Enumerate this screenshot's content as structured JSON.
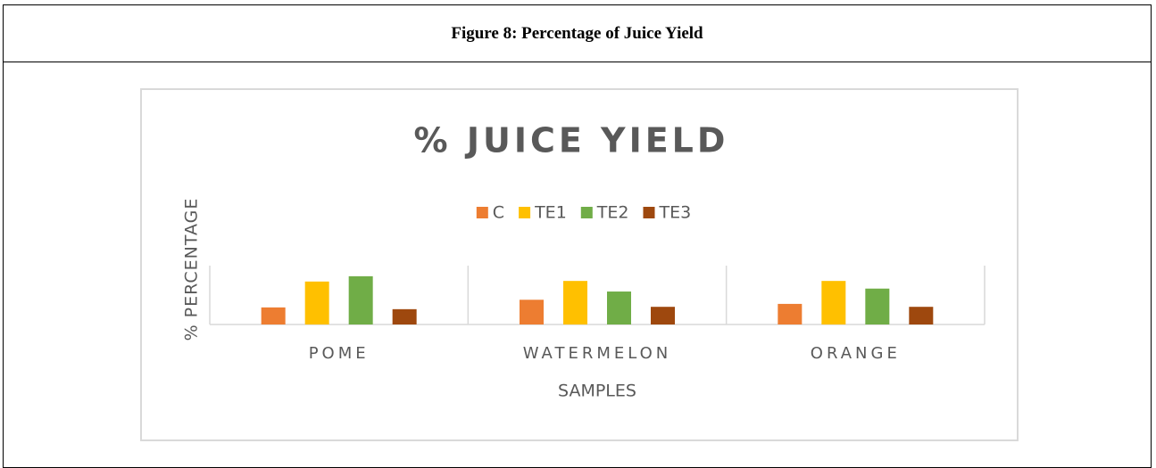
{
  "header": {
    "title": "Figure 8: Percentage of Juice Yield"
  },
  "chart_data": {
    "type": "bar",
    "title": "% JUICE YIELD",
    "x_label": "SAMPLES",
    "y_label": "% PERCENTAGE",
    "categories": [
      "POME",
      "WATERMELON",
      "ORANGE"
    ],
    "series": [
      {
        "name": "C",
        "color": "#ed7d31",
        "values": [
          29,
          42,
          35
        ]
      },
      {
        "name": "TE1",
        "color": "#ffc000",
        "values": [
          73,
          74,
          74
        ]
      },
      {
        "name": "TE2",
        "color": "#70ad47",
        "values": [
          82,
          56,
          61
        ]
      },
      {
        "name": "TE3",
        "color": "#9e480e",
        "values": [
          26,
          30,
          30
        ]
      }
    ],
    "ylim": [
      0,
      100
    ],
    "legend": "top"
  }
}
